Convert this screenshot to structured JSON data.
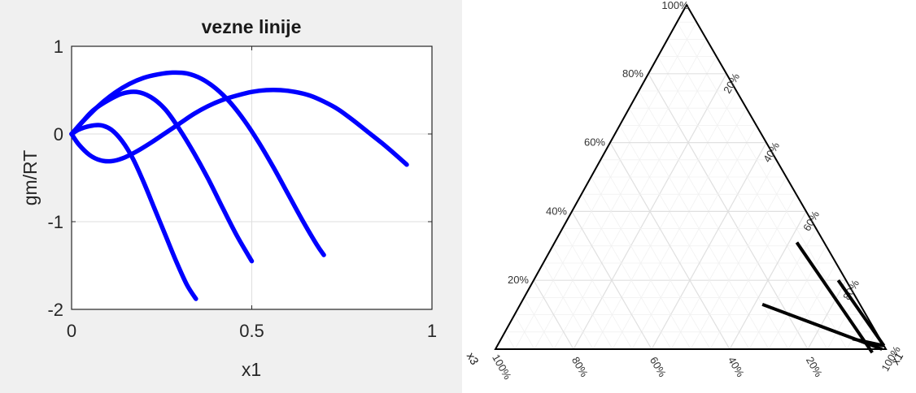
{
  "chart_data": [
    {
      "type": "line",
      "title": "vezne linije",
      "xlabel": "x1",
      "ylabel": "gm/RT",
      "xlim": [
        0,
        1
      ],
      "ylim": [
        -2,
        1
      ],
      "xticks": [
        0,
        0.5,
        1
      ],
      "xtick_labels": [
        "0",
        "0.5",
        "1"
      ],
      "yticks": [
        -2,
        -1,
        0,
        1
      ],
      "ytick_labels": [
        "-2",
        "-1",
        "0",
        "1"
      ],
      "grid": true,
      "color": "#0000ff",
      "series": [
        {
          "x": [
            0,
            0.02,
            0.05,
            0.08,
            0.11,
            0.14,
            0.17,
            0.2,
            0.23,
            0.26,
            0.29,
            0.32,
            0.345
          ],
          "y": [
            0.0,
            0.05,
            0.09,
            0.1,
            0.05,
            -0.08,
            -0.28,
            -0.55,
            -0.85,
            -1.15,
            -1.45,
            -1.72,
            -1.88
          ]
        },
        {
          "x": [
            0,
            0.03,
            0.06,
            0.1,
            0.14,
            0.18,
            0.22,
            0.26,
            0.3,
            0.34,
            0.38,
            0.42,
            0.46,
            0.5
          ],
          "y": [
            0.0,
            0.14,
            0.27,
            0.38,
            0.46,
            0.48,
            0.42,
            0.28,
            0.05,
            -0.22,
            -0.52,
            -0.85,
            -1.17,
            -1.45
          ]
        },
        {
          "x": [
            0,
            0.04,
            0.08,
            0.12,
            0.16,
            0.2,
            0.24,
            0.28,
            0.32,
            0.36,
            0.4,
            0.44,
            0.48,
            0.52,
            0.56,
            0.6,
            0.64,
            0.68,
            0.7
          ],
          "y": [
            0.0,
            0.18,
            0.34,
            0.47,
            0.57,
            0.64,
            0.68,
            0.7,
            0.69,
            0.63,
            0.52,
            0.36,
            0.15,
            -0.1,
            -0.38,
            -0.68,
            -0.98,
            -1.26,
            -1.38
          ]
        },
        {
          "x": [
            0,
            0.02,
            0.05,
            0.08,
            0.11,
            0.14,
            0.18,
            0.22,
            0.26,
            0.3,
            0.34,
            0.38,
            0.42,
            0.46,
            0.5,
            0.54,
            0.58,
            0.62,
            0.66,
            0.7,
            0.74,
            0.78,
            0.82,
            0.86,
            0.9,
            0.93
          ],
          "y": [
            0.0,
            -0.12,
            -0.24,
            -0.3,
            -0.31,
            -0.28,
            -0.2,
            -0.1,
            0.01,
            0.12,
            0.23,
            0.32,
            0.39,
            0.44,
            0.48,
            0.5,
            0.5,
            0.48,
            0.44,
            0.37,
            0.28,
            0.16,
            0.03,
            -0.1,
            -0.24,
            -0.35
          ]
        }
      ]
    },
    {
      "type": "ternary",
      "corner_labels": {
        "top": "100%",
        "left": "x3",
        "right": "x1"
      },
      "ticks_left": [
        "20%",
        "40%",
        "60%",
        "80%"
      ],
      "ticks_right": [
        "20%",
        "40%",
        "60%",
        "80%",
        "100%"
      ],
      "ticks_bottom": [
        "100%",
        "80%",
        "60%",
        "40%",
        "20%"
      ],
      "grid": true,
      "grid_color": "#e6e6e6",
      "line_color": "#000000",
      "tie_lines": [
        {
          "x1": [
            0.62,
            0.97
          ],
          "x3": [
            0.07,
            0.04
          ]
        },
        {
          "x1": [
            0.78,
            0.99
          ],
          "x3": [
            0.02,
            0.0
          ]
        },
        {
          "x1": [
            0.62,
            0.99
          ],
          "x3": [
            0.25,
            0.01
          ]
        },
        {
          "x1": [
            0.9,
            0.99
          ],
          "x3": [
            0.07,
            0.0
          ]
        }
      ]
    }
  ]
}
